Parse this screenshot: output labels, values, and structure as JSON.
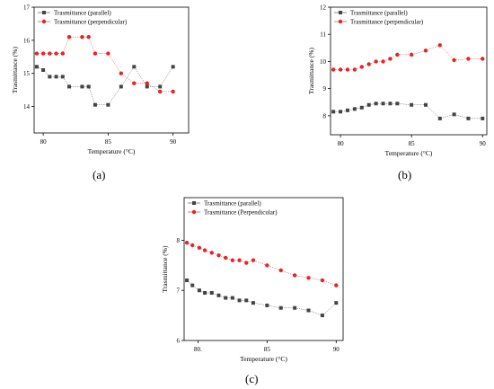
{
  "chart_data": [
    {
      "type": "scatter",
      "panel_label": "(a)",
      "xlabel": "Temperature (°C)",
      "ylabel": "Trasmittance (%)",
      "xlim": [
        79.3,
        91.2
      ],
      "ylim": [
        13.2,
        17.0
      ],
      "xticks": [
        80,
        85,
        90
      ],
      "yticks": [
        14,
        15,
        16,
        17
      ],
      "legend_position": "top-left",
      "series": [
        {
          "name": "Trasmittance (parallel)",
          "color": "#444444",
          "marker": "square",
          "x": [
            79.5,
            80,
            80.5,
            81,
            81.5,
            82,
            83,
            83.5,
            84,
            85,
            86,
            87,
            88,
            89,
            90
          ],
          "y": [
            15.2,
            15.1,
            14.9,
            14.9,
            14.9,
            14.6,
            14.6,
            14.6,
            14.05,
            14.05,
            14.6,
            15.2,
            14.6,
            14.6,
            15.2
          ]
        },
        {
          "name": "Trasmittance (perpendicular)",
          "color": "#e52424",
          "marker": "circle",
          "x": [
            79.5,
            80,
            80.5,
            81,
            81.5,
            82,
            83,
            83.5,
            84,
            85,
            86,
            87,
            88,
            89,
            90
          ],
          "y": [
            15.6,
            15.6,
            15.6,
            15.6,
            15.6,
            16.1,
            16.1,
            16.1,
            15.6,
            15.6,
            15.0,
            14.7,
            14.7,
            14.45,
            14.45
          ]
        }
      ]
    },
    {
      "type": "scatter",
      "panel_label": "(b)",
      "xlabel": "Temperature (°C)",
      "ylabel": "Trasmittance (%)",
      "xlim": [
        79.3,
        90.3
      ],
      "ylim": [
        7.3,
        12.0
      ],
      "xticks": [
        80,
        85,
        90
      ],
      "yticks": [
        8,
        9,
        10,
        11,
        12
      ],
      "legend_position": "top-left",
      "series": [
        {
          "name": "Trasmittance (parallel)",
          "color": "#444444",
          "marker": "square",
          "x": [
            79.5,
            80,
            80.5,
            81,
            81.5,
            82,
            82.5,
            83,
            83.5,
            84,
            85,
            86,
            87,
            88,
            89,
            90
          ],
          "y": [
            8.15,
            8.15,
            8.2,
            8.25,
            8.3,
            8.4,
            8.45,
            8.45,
            8.45,
            8.45,
            8.4,
            8.4,
            7.9,
            8.05,
            7.9,
            7.9
          ]
        },
        {
          "name": "Trasmittance (perpendicular)",
          "color": "#e52424",
          "marker": "circle",
          "x": [
            79.5,
            80,
            80.5,
            81,
            81.5,
            82,
            82.5,
            83,
            83.5,
            84,
            85,
            86,
            87,
            88,
            89,
            90
          ],
          "y": [
            9.7,
            9.7,
            9.7,
            9.7,
            9.8,
            9.9,
            10.0,
            10.0,
            10.1,
            10.25,
            10.25,
            10.4,
            10.6,
            10.05,
            10.1,
            10.1
          ]
        }
      ]
    },
    {
      "type": "scatter",
      "panel_label": "(c)",
      "xlabel": "Temperature (°C)",
      "ylabel": "Trasmittance (%)",
      "xlim": [
        79.0,
        90.5
      ],
      "ylim": [
        6.0,
        8.85
      ],
      "xticks": [
        80,
        85,
        90
      ],
      "xtick_labels": [
        "80.",
        "85",
        "90"
      ],
      "yticks": [
        6,
        7,
        8
      ],
      "legend_position": "top-left",
      "series": [
        {
          "name": "Trasmittance (parallel)",
          "color": "#444444",
          "marker": "square",
          "x": [
            79.2,
            79.6,
            80.1,
            80.5,
            81,
            81.5,
            82,
            82.5,
            83,
            83.5,
            84,
            85,
            86,
            87,
            88,
            89,
            90
          ],
          "y": [
            7.2,
            7.1,
            7.0,
            6.95,
            6.95,
            6.9,
            6.85,
            6.85,
            6.8,
            6.8,
            6.75,
            6.7,
            6.65,
            6.65,
            6.6,
            6.5,
            6.75
          ]
        },
        {
          "name": "Trasmittance (Perpendicular)",
          "color": "#e52424",
          "marker": "circle",
          "x": [
            79.2,
            79.6,
            80.1,
            80.5,
            81,
            81.5,
            82,
            82.5,
            83,
            83.5,
            84,
            85,
            86,
            87,
            88,
            89,
            90
          ],
          "y": [
            7.95,
            7.9,
            7.85,
            7.8,
            7.75,
            7.7,
            7.65,
            7.6,
            7.6,
            7.55,
            7.6,
            7.5,
            7.4,
            7.3,
            7.25,
            7.2,
            7.1
          ]
        }
      ]
    }
  ]
}
